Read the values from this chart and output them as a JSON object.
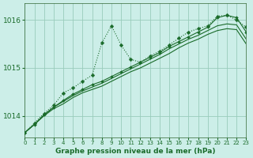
{
  "title": "Graphe pression niveau de la mer (hPa)",
  "bg_color": "#cceee8",
  "grid_color": "#99ccbb",
  "line_color": "#1a6b2a",
  "x_min": 0,
  "x_max": 23,
  "y_min": 1013.55,
  "y_max": 1016.35,
  "yticks": [
    1014,
    1015,
    1016
  ],
  "xticks": [
    0,
    1,
    2,
    3,
    4,
    5,
    6,
    7,
    8,
    9,
    10,
    11,
    12,
    13,
    14,
    15,
    16,
    17,
    18,
    19,
    20,
    21,
    22,
    23
  ],
  "series_spiky": [
    1013.65,
    1013.85,
    1014.05,
    1014.22,
    1014.48,
    1014.58,
    1014.72,
    1014.85,
    1015.52,
    1015.88,
    1015.48,
    1015.18,
    1015.12,
    1015.25,
    1015.35,
    1015.48,
    1015.62,
    1015.75,
    1015.82,
    1015.88,
    1016.08,
    1016.1,
    1016.0,
    1015.85
  ],
  "series_smooth1": [
    1013.65,
    1013.82,
    1014.02,
    1014.18,
    1014.32,
    1014.45,
    1014.55,
    1014.65,
    1014.72,
    1014.82,
    1014.92,
    1015.02,
    1015.12,
    1015.22,
    1015.32,
    1015.45,
    1015.55,
    1015.65,
    1015.75,
    1015.85,
    1016.05,
    1016.1,
    1016.05,
    1015.75
  ],
  "series_smooth2": [
    1013.65,
    1013.82,
    1014.02,
    1014.18,
    1014.3,
    1014.42,
    1014.52,
    1014.6,
    1014.68,
    1014.78,
    1014.88,
    1014.98,
    1015.08,
    1015.18,
    1015.28,
    1015.4,
    1015.5,
    1015.6,
    1015.68,
    1015.78,
    1015.88,
    1015.92,
    1015.9,
    1015.6
  ],
  "series_smooth3": [
    1013.65,
    1013.82,
    1014.0,
    1014.15,
    1014.25,
    1014.38,
    1014.48,
    1014.55,
    1014.62,
    1014.72,
    1014.82,
    1014.92,
    1015.0,
    1015.1,
    1015.2,
    1015.3,
    1015.42,
    1015.52,
    1015.6,
    1015.7,
    1015.78,
    1015.82,
    1015.8,
    1015.5
  ]
}
